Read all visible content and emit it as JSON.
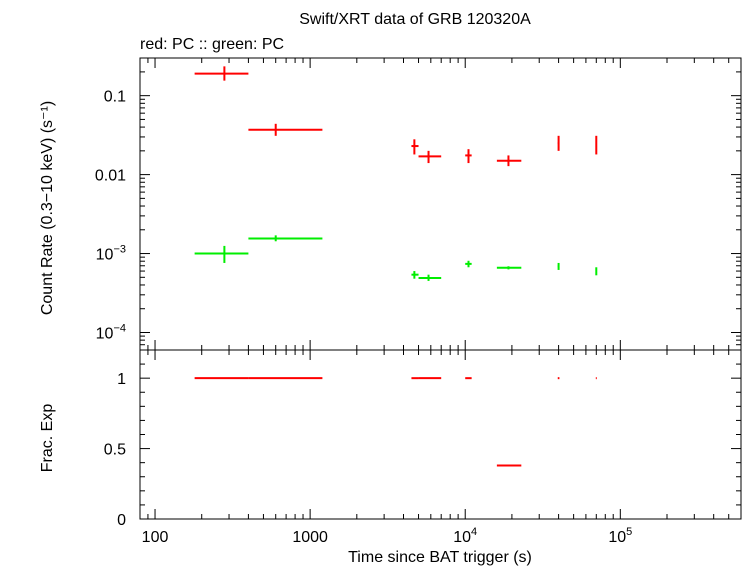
{
  "chart_data": {
    "title": "Swift/XRT data of GRB 120320A",
    "subtitle": "red: PC  :: green: PC",
    "xlabel": "Time since BAT trigger (s)",
    "xscale": "log",
    "xlim": [
      80,
      600000
    ],
    "x_ticklabels": [
      {
        "value": 100,
        "base": "100",
        "exp": ""
      },
      {
        "value": 1000,
        "base": "1000",
        "exp": ""
      },
      {
        "value": 10000,
        "base": "10",
        "exp": "4"
      },
      {
        "value": 100000,
        "base": "10",
        "exp": "5"
      }
    ],
    "panels": [
      {
        "id": "rate",
        "type": "scatter",
        "yscale": "log",
        "ylabel": "Count Rate (0.3−10 keV) (s⁻¹)",
        "ylim": [
          6e-05,
          0.3
        ],
        "y_ticklabels": [
          {
            "value": 0.1,
            "base": "0.1",
            "exp": ""
          },
          {
            "value": 0.01,
            "base": "0.01",
            "exp": ""
          },
          {
            "value": 0.001,
            "base": "10",
            "exp": "−3"
          },
          {
            "value": 0.0001,
            "base": "10",
            "exp": "−4"
          }
        ],
        "series": [
          {
            "color": "#ff0000",
            "points": [
              {
                "x": 280,
                "xlo": 180,
                "xhi": 400,
                "y": 0.19,
                "ylo": 0.155,
                "yhi": 0.235
              },
              {
                "x": 600,
                "xlo": 400,
                "xhi": 1200,
                "y": 0.037,
                "ylo": 0.031,
                "yhi": 0.044
              },
              {
                "x": 4700,
                "xlo": 4500,
                "xhi": 5000,
                "y": 0.023,
                "ylo": 0.018,
                "yhi": 0.028
              },
              {
                "x": 5800,
                "xlo": 5000,
                "xhi": 7000,
                "y": 0.017,
                "ylo": 0.014,
                "yhi": 0.02
              },
              {
                "x": 10500,
                "xlo": 10000,
                "xhi": 11000,
                "y": 0.0175,
                "ylo": 0.014,
                "yhi": 0.021
              },
              {
                "x": 19000,
                "xlo": 16000,
                "xhi": 23000,
                "y": 0.015,
                "ylo": 0.0128,
                "yhi": 0.0175
              },
              {
                "x": 40000,
                "xlo": 39500,
                "xhi": 40500,
                "y": 0.025,
                "ylo": 0.02,
                "yhi": 0.031
              },
              {
                "x": 70000,
                "xlo": 69500,
                "xhi": 70500,
                "y": 0.024,
                "ylo": 0.018,
                "yhi": 0.031
              }
            ]
          },
          {
            "color": "#00ee00",
            "points": [
              {
                "x": 280,
                "xlo": 180,
                "xhi": 400,
                "y": 0.001,
                "ylo": 0.00076,
                "yhi": 0.00125
              },
              {
                "x": 600,
                "xlo": 400,
                "xhi": 1200,
                "y": 0.00155,
                "ylo": 0.00143,
                "yhi": 0.0017
              },
              {
                "x": 4700,
                "xlo": 4500,
                "xhi": 5000,
                "y": 0.00054,
                "ylo": 0.00048,
                "yhi": 0.0006
              },
              {
                "x": 5800,
                "xlo": 5000,
                "xhi": 7000,
                "y": 0.00049,
                "ylo": 0.00045,
                "yhi": 0.00054
              },
              {
                "x": 10500,
                "xlo": 10000,
                "xhi": 11000,
                "y": 0.00074,
                "ylo": 0.00067,
                "yhi": 0.00081
              },
              {
                "x": 19000,
                "xlo": 16000,
                "xhi": 23000,
                "y": 0.00066,
                "ylo": 0.00063,
                "yhi": 0.00069
              },
              {
                "x": 40000,
                "xlo": 39500,
                "xhi": 40500,
                "y": 0.00069,
                "ylo": 0.00062,
                "yhi": 0.00076
              },
              {
                "x": 70000,
                "xlo": 69500,
                "xhi": 70500,
                "y": 0.0006,
                "ylo": 0.00053,
                "yhi": 0.00067
              }
            ]
          }
        ]
      },
      {
        "id": "fracexp",
        "type": "scatter",
        "yscale": "linear",
        "ylabel": "Frac. Exp",
        "ylim": [
          0,
          1.2
        ],
        "y_ticklabels": [
          {
            "value": 1,
            "base": "1",
            "exp": ""
          },
          {
            "value": 0.5,
            "base": "0.5",
            "exp": ""
          },
          {
            "value": 0,
            "base": "0",
            "exp": ""
          }
        ],
        "series": [
          {
            "color": "#ff0000",
            "points": [
              {
                "x": 280,
                "xlo": 180,
                "xhi": 400,
                "y": 1
              },
              {
                "x": 600,
                "xlo": 400,
                "xhi": 1200,
                "y": 1
              },
              {
                "x": 4700,
                "xlo": 4500,
                "xhi": 5000,
                "y": 1
              },
              {
                "x": 5800,
                "xlo": 5000,
                "xhi": 7000,
                "y": 1
              },
              {
                "x": 10500,
                "xlo": 10000,
                "xhi": 11000,
                "y": 1
              },
              {
                "x": 19000,
                "xlo": 16000,
                "xhi": 23000,
                "y": 0.38
              },
              {
                "x": 40000,
                "xlo": 39500,
                "xhi": 40500,
                "y": 1
              },
              {
                "x": 70000,
                "xlo": 69500,
                "xhi": 70500,
                "y": 1
              }
            ]
          }
        ]
      }
    ]
  }
}
